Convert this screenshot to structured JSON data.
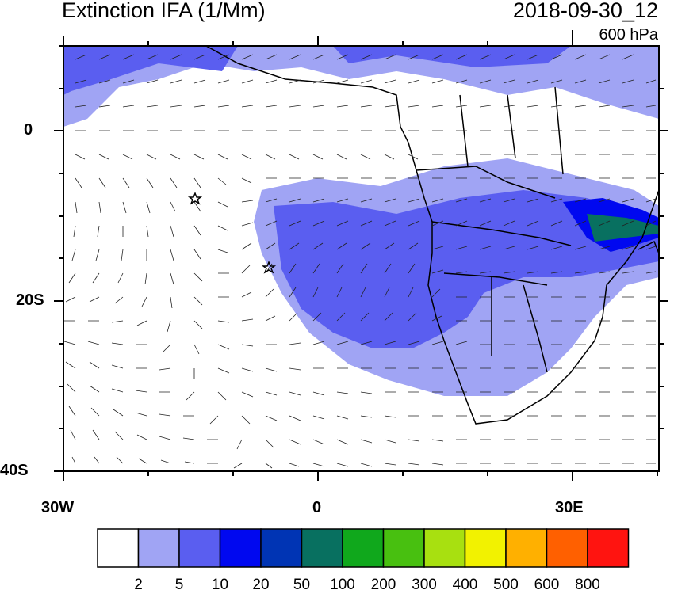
{
  "header": {
    "title": "Extinction IFA (1/Mm)",
    "datetime": "2018-09-30_12",
    "level": "600 hPa"
  },
  "map": {
    "lat_range": [
      "10N",
      "40S"
    ],
    "lon_range": [
      "30W",
      "40E"
    ],
    "y_tick_labels": [
      "0",
      "20S",
      "40S"
    ],
    "x_tick_labels": [
      "30W",
      "0",
      "30E"
    ],
    "markers": [
      {
        "type": "star",
        "lon": -14.5,
        "lat": -8
      },
      {
        "type": "star",
        "lon": -5.7,
        "lat": -16
      }
    ]
  },
  "colorbar": {
    "colors": [
      "#ffffff",
      "#a0a4f4",
      "#5a5ef0",
      "#0008f0",
      "#0034b4",
      "#087060",
      "#10a81c",
      "#48c010",
      "#a8e010",
      "#f2f200",
      "#ffb000",
      "#ff6000",
      "#ff1410"
    ],
    "labels": [
      "2",
      "5",
      "10",
      "20",
      "50",
      "100",
      "200",
      "300",
      "400",
      "500",
      "600",
      "800"
    ]
  }
}
